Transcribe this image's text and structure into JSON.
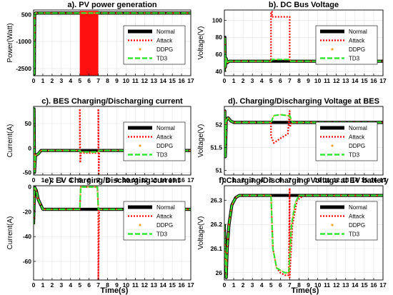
{
  "figure": {
    "xlabel": "Time(s)"
  },
  "series_style": [
    {
      "name": "Normal",
      "color": "#000000",
      "dash": "",
      "dot": false
    },
    {
      "name": "Attack",
      "color": "#ff0000",
      "dash": "2,2",
      "dot": false
    },
    {
      "name": "DDPG",
      "color": "#f5a623",
      "dash": "",
      "dot": true
    },
    {
      "name": "TD3",
      "color": "#33e633",
      "dash": "7,3",
      "dot": false
    }
  ],
  "chart_data": [
    {
      "type": "line",
      "title": "a). PV power generation",
      "ylabel": "Power(Watt)",
      "xlabel": "",
      "xlim": [
        0,
        17
      ],
      "ylim": [
        -2900,
        750
      ],
      "xticks": [
        0,
        1,
        2,
        3,
        4,
        5,
        6,
        7,
        8,
        9,
        10,
        11,
        12,
        13,
        14,
        15,
        16,
        17
      ],
      "yticks": [
        500,
        -1000,
        -2500
      ],
      "ytick_labels": [
        "500",
        "-1000",
        "-2500"
      ],
      "legend": "right",
      "series": [
        {
          "name": "Normal",
          "x": [
            0,
            0.08,
            0.12,
            0.2,
            17
          ],
          "y": [
            0,
            -2800,
            500,
            580,
            580
          ]
        },
        {
          "name": "Attack",
          "x": [
            0,
            0.08,
            0.12,
            0.2,
            5,
            5,
            7,
            7,
            17
          ],
          "y": [
            0,
            -2800,
            500,
            580,
            580,
            580,
            580,
            580,
            580
          ],
          "band": [
            5,
            7,
            -2900,
            700
          ]
        },
        {
          "name": "DDPG",
          "x": [
            0,
            0.08,
            0.12,
            0.2,
            17
          ],
          "y": [
            0,
            -2800,
            500,
            580,
            580
          ]
        },
        {
          "name": "TD3",
          "x": [
            0,
            0.08,
            0.12,
            0.2,
            17
          ],
          "y": [
            0,
            -2800,
            500,
            580,
            580
          ]
        }
      ]
    },
    {
      "type": "line",
      "title": "b). DC Bus Voltage",
      "ylabel": "Voltage(V)",
      "xlabel": "",
      "xlim": [
        0,
        17
      ],
      "ylim": [
        35,
        112
      ],
      "xticks": [
        0,
        1,
        2,
        3,
        4,
        5,
        6,
        7,
        8,
        9,
        10,
        11,
        12,
        13,
        14,
        15,
        16,
        17
      ],
      "yticks": [
        40,
        60,
        80,
        100
      ],
      "ytick_labels": [
        "40",
        "60",
        "80",
        "100"
      ],
      "legend": "right",
      "series": [
        {
          "name": "Normal",
          "x": [
            0,
            0.05,
            0.1,
            0.2,
            0.3,
            0.5,
            17
          ],
          "y": [
            40,
            80,
            45,
            55,
            50,
            52,
            52
          ]
        },
        {
          "name": "Attack",
          "x": [
            0,
            0.05,
            0.1,
            0.2,
            0.3,
            0.5,
            5,
            5,
            5.1,
            5.1,
            7,
            7,
            17
          ],
          "y": [
            40,
            80,
            45,
            55,
            50,
            52,
            52,
            110,
            110,
            104,
            104,
            52,
            52
          ]
        },
        {
          "name": "DDPG",
          "x": [
            0,
            0.05,
            0.1,
            0.2,
            0.3,
            0.5,
            5,
            5.1,
            7,
            7.1,
            17
          ],
          "y": [
            40,
            80,
            45,
            55,
            50,
            52,
            52,
            54,
            54,
            52,
            52
          ]
        },
        {
          "name": "TD3",
          "x": [
            0,
            0.05,
            0.1,
            0.2,
            0.3,
            0.5,
            5,
            5.1,
            7,
            7.1,
            17
          ],
          "y": [
            40,
            80,
            45,
            55,
            50,
            52,
            52,
            54,
            54,
            52,
            52
          ]
        }
      ]
    },
    {
      "type": "line",
      "title": "c). BES Charging/Discharging current",
      "ylabel": "Current(A)",
      "xlabel": "",
      "xlim": [
        0,
        17
      ],
      "ylim": [
        -55,
        85
      ],
      "xticks": [
        0,
        1,
        2,
        3,
        4,
        5,
        6,
        7,
        8,
        9,
        10,
        11,
        12,
        13,
        14,
        15,
        16,
        17
      ],
      "yticks": [
        50,
        0,
        -50
      ],
      "ytick_labels": [
        "50",
        "0",
        "-50"
      ],
      "legend": "right",
      "series": [
        {
          "name": "Normal",
          "x": [
            0,
            0.05,
            0.1,
            0.2,
            0.5,
            0.8,
            1,
            17
          ],
          "y": [
            0,
            80,
            -50,
            -15,
            -12,
            -5,
            -5,
            -5
          ]
        },
        {
          "name": "Attack",
          "x": [
            0,
            0.05,
            0.1,
            0.2,
            0.5,
            0.8,
            1,
            5,
            5,
            5.05,
            5.1,
            7,
            7,
            7.05,
            7.1,
            17
          ],
          "y": [
            0,
            80,
            -50,
            -15,
            -12,
            -5,
            -5,
            -5,
            80,
            -30,
            -10,
            -10,
            80,
            -55,
            -5,
            -5
          ]
        },
        {
          "name": "DDPG",
          "x": [
            0,
            0.05,
            0.1,
            0.2,
            0.5,
            0.8,
            1,
            5,
            5.1,
            7,
            7.1,
            17
          ],
          "y": [
            0,
            80,
            -50,
            -15,
            -12,
            -5,
            -5,
            -5,
            -8,
            -8,
            -5,
            -5
          ]
        },
        {
          "name": "TD3",
          "x": [
            0,
            0.05,
            0.1,
            0.2,
            0.5,
            0.8,
            1,
            5,
            5.1,
            7,
            7.1,
            17
          ],
          "y": [
            0,
            80,
            -50,
            -15,
            -12,
            -5,
            -5,
            -5,
            -8,
            -8,
            -5,
            -5
          ]
        }
      ]
    },
    {
      "type": "line",
      "title": "d). Charging/Discharging Voltage at BES",
      "ylabel": "Voltage(V)",
      "xlabel": "",
      "xlim": [
        0,
        17
      ],
      "ylim": [
        50.9,
        52.4
      ],
      "xticks": [
        0,
        1,
        2,
        3,
        4,
        5,
        6,
        7,
        8,
        9,
        10,
        11,
        12,
        13,
        14,
        15,
        16,
        17
      ],
      "yticks": [
        51,
        51.5,
        52
      ],
      "ytick_labels": [
        "51",
        "51.5",
        "52"
      ],
      "legend": "right",
      "series": [
        {
          "name": "Normal",
          "x": [
            0,
            0.05,
            0.1,
            0.2,
            0.4,
            0.7,
            1,
            17
          ],
          "y": [
            51.4,
            52.3,
            51.3,
            52.1,
            52.15,
            52.08,
            52.05,
            52.05
          ]
        },
        {
          "name": "Attack",
          "x": [
            0,
            0.05,
            0.1,
            0.2,
            0.4,
            0.7,
            1,
            5,
            5,
            5.3,
            6,
            6.8,
            7,
            7,
            7.3,
            17
          ],
          "y": [
            51.4,
            52.3,
            51.3,
            52.1,
            52.15,
            52.08,
            52.05,
            52.05,
            51.75,
            51.6,
            51.7,
            51.8,
            52.3,
            51.95,
            52.05,
            52.05
          ]
        },
        {
          "name": "DDPG",
          "x": [
            0,
            0.05,
            0.1,
            0.2,
            0.4,
            0.7,
            1,
            5,
            5.3,
            6,
            6.8,
            7,
            7.3,
            17
          ],
          "y": [
            51.4,
            52.3,
            51.3,
            52.1,
            52.15,
            52.08,
            52.05,
            52.05,
            52.2,
            52.22,
            52.2,
            52.2,
            52.05,
            52.05
          ]
        },
        {
          "name": "TD3",
          "x": [
            0,
            0.05,
            0.1,
            0.2,
            0.4,
            0.7,
            1,
            5,
            5.3,
            6,
            6.8,
            7,
            7.3,
            17
          ],
          "y": [
            51.4,
            52.3,
            51.3,
            52.1,
            52.15,
            52.08,
            52.05,
            52.05,
            52.2,
            52.22,
            52.2,
            52.2,
            52.05,
            52.05
          ]
        }
      ]
    },
    {
      "type": "line",
      "title": "e). EV Charging/Discharging current",
      "ylabel": "Current(A)",
      "xlabel": "",
      "xlim": [
        0,
        17
      ],
      "ylim": [
        -75,
        1
      ],
      "xticks": [
        0,
        1,
        2,
        3,
        4,
        5,
        6,
        7,
        8,
        9,
        10,
        11,
        12,
        13,
        14,
        15,
        16,
        17
      ],
      "yticks": [
        0,
        -20,
        -40,
        -60
      ],
      "ytick_labels": [
        "0",
        "-20",
        "-40",
        "-60"
      ],
      "legend": "right",
      "series": [
        {
          "name": "Normal",
          "x": [
            0,
            0.1,
            0.3,
            0.5,
            1,
            17
          ],
          "y": [
            -30,
            0,
            -3,
            -10,
            -18,
            -18
          ]
        },
        {
          "name": "Attack",
          "x": [
            0,
            0.1,
            0.3,
            0.5,
            1,
            5,
            5.1,
            6.9,
            7,
            7,
            7.1,
            17
          ],
          "y": [
            -30,
            0,
            -3,
            -10,
            -18,
            -18,
            0,
            0,
            -18,
            -75,
            -18,
            -18
          ]
        },
        {
          "name": "DDPG",
          "x": [
            0,
            0.1,
            0.3,
            0.5,
            1,
            5,
            5.1,
            6.9,
            7,
            17
          ],
          "y": [
            -30,
            0,
            -3,
            -10,
            -18,
            -18,
            0,
            0,
            -18,
            -18
          ]
        },
        {
          "name": "TD3",
          "x": [
            0,
            0.1,
            0.3,
            0.5,
            1,
            5,
            5.1,
            6.9,
            7,
            17
          ],
          "y": [
            -30,
            0,
            -3,
            -10,
            -18,
            -18,
            0,
            0,
            -18,
            -18
          ]
        }
      ]
    },
    {
      "type": "line",
      "title": "f).Charging/Discharging Voltage at EV battery",
      "ylabel": "Voltage(V)",
      "xlabel": "",
      "xlim": [
        0,
        17
      ],
      "ylim": [
        25.97,
        26.36
      ],
      "xticks": [
        0,
        1,
        2,
        3,
        4,
        5,
        6,
        7,
        8,
        9,
        10,
        11,
        12,
        13,
        14,
        15,
        16,
        17
      ],
      "yticks": [
        26,
        26.1,
        26.2,
        26.3
      ],
      "ytick_labels": [
        "26",
        "26.1",
        "26.2",
        "26.3"
      ],
      "legend": "right",
      "series": [
        {
          "name": "Normal",
          "x": [
            0,
            0.1,
            0.2,
            0.3,
            0.5,
            0.8,
            1.2,
            1.6,
            2,
            17
          ],
          "y": [
            26.2,
            26.05,
            25.98,
            26.1,
            26.2,
            26.28,
            26.31,
            26.32,
            26.32,
            26.32
          ]
        },
        {
          "name": "Attack",
          "x": [
            0,
            0.1,
            0.2,
            0.3,
            0.5,
            0.8,
            1.2,
            1.6,
            2,
            5,
            5.2,
            5.6,
            6,
            6.5,
            6.9,
            7,
            7,
            7.3,
            7.8,
            8.5,
            17
          ],
          "y": [
            26.2,
            26.05,
            25.98,
            26.1,
            26.2,
            26.28,
            26.31,
            26.32,
            26.32,
            26.32,
            26.1,
            26.02,
            26,
            25.99,
            25.99,
            26.35,
            25.98,
            26.2,
            26.3,
            26.32,
            26.32
          ]
        },
        {
          "name": "DDPG",
          "x": [
            0,
            0.1,
            0.2,
            0.3,
            0.5,
            0.8,
            1.2,
            1.6,
            2,
            5,
            5.2,
            5.6,
            6,
            6.5,
            6.9,
            7.2,
            7.6,
            8,
            17
          ],
          "y": [
            26.2,
            26.05,
            25.98,
            26.1,
            26.2,
            26.28,
            26.31,
            26.32,
            26.32,
            26.32,
            26.1,
            26.02,
            26.01,
            26,
            26,
            26.2,
            26.29,
            26.32,
            26.32
          ]
        },
        {
          "name": "TD3",
          "x": [
            0,
            0.1,
            0.2,
            0.3,
            0.5,
            0.8,
            1.2,
            1.6,
            2,
            5,
            5.2,
            5.6,
            6,
            6.5,
            6.9,
            7.2,
            7.6,
            8,
            17
          ],
          "y": [
            26.2,
            26.05,
            25.98,
            26.1,
            26.2,
            26.28,
            26.31,
            26.32,
            26.32,
            26.32,
            26.1,
            26.02,
            26.01,
            26,
            26,
            26.2,
            26.29,
            26.32,
            26.32
          ]
        }
      ]
    }
  ]
}
